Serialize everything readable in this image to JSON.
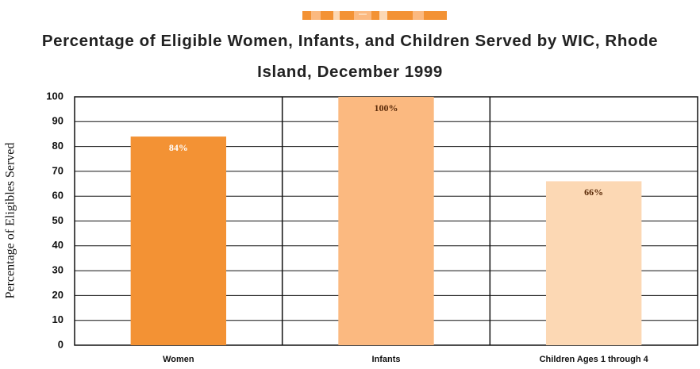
{
  "chart_data": {
    "type": "bar",
    "title": "Percentage of Eligible Women, Infants, and Children Served by WIC, Rhode Island, December 1999",
    "y_label": "Percentage of Eligibles Served",
    "categories": [
      "Women",
      "Infants",
      "Children Ages 1 through 4"
    ],
    "values": [
      84,
      100,
      66
    ],
    "value_labels": [
      "84%",
      "100%",
      "66%"
    ],
    "colors": [
      "#f39234",
      "#fbb980",
      "#fcd8b4"
    ],
    "value_label_colors": [
      "#ffffff",
      "#5a2a08",
      "#5a2a08"
    ],
    "ylim": [
      0,
      100
    ],
    "yticks": [
      0,
      10,
      20,
      30,
      40,
      50,
      60,
      70,
      80,
      90,
      100
    ],
    "grid": true
  }
}
